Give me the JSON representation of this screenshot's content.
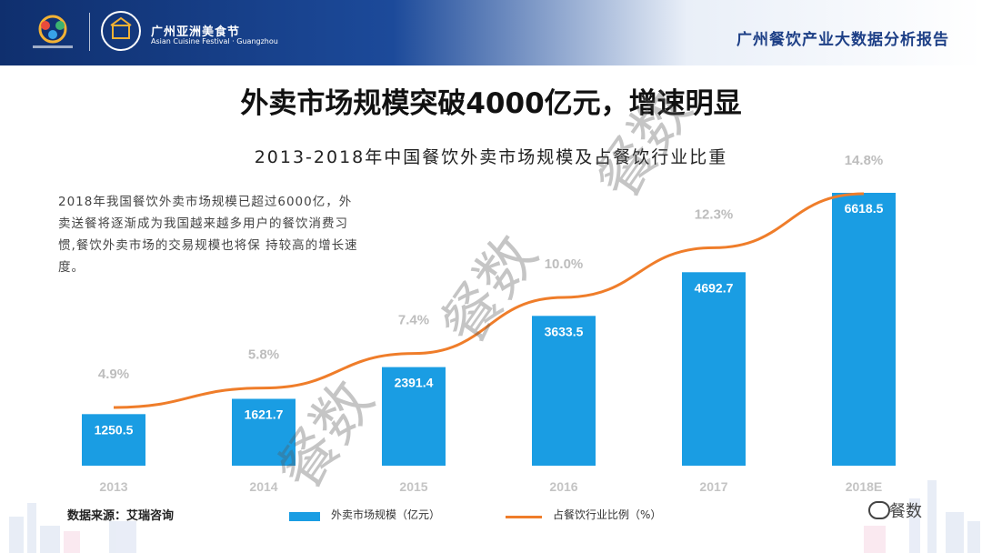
{
  "header": {
    "festival_name": "广州亚洲美食节",
    "festival_name_en": "Asian Cuisine Festival · Guangzhou",
    "report_title": "广州餐饮产业大数据分析报告"
  },
  "title": "外卖市场规模突破4000亿元，增速明显",
  "subtitle": "2013-2018年中国餐饮外卖市场规模及占餐饮行业比重",
  "description": "2018年我国餐饮外卖市场规模已超过6000亿，外卖送餐将逐渐成为我国越来越多用户的餐饮消费习惯,餐饮外卖市场的交易规模也将保 持较高的增长速度。",
  "source": "数据来源：艾瑞咨询",
  "watermark": "餐数",
  "brand": "餐数",
  "colors": {
    "bar": "#1a9de3",
    "line": "#ef7d2a",
    "header": "#1d3f86"
  },
  "chart_data": {
    "type": "bar",
    "categories": [
      "2013",
      "2014",
      "2015",
      "2016",
      "2017",
      "2018E"
    ],
    "series": [
      {
        "name": "外卖市场规模（亿元）",
        "type": "bar",
        "values": [
          1250.5,
          1621.7,
          2391.4,
          3633.5,
          4692.7,
          6618.5
        ],
        "labels": [
          "1250.5",
          "1621.7",
          "2391.4",
          "3633.5",
          "4692.7",
          "6618.5"
        ]
      },
      {
        "name": "占餐饮行业比例（%）",
        "type": "line",
        "values": [
          4.9,
          5.8,
          7.4,
          10.0,
          12.3,
          14.8
        ],
        "labels": [
          "4.9%",
          "5.8%",
          "7.4%",
          "10.0%",
          "12.3%",
          "14.8%"
        ]
      }
    ],
    "legend_position": "bottom",
    "grid": false
  }
}
